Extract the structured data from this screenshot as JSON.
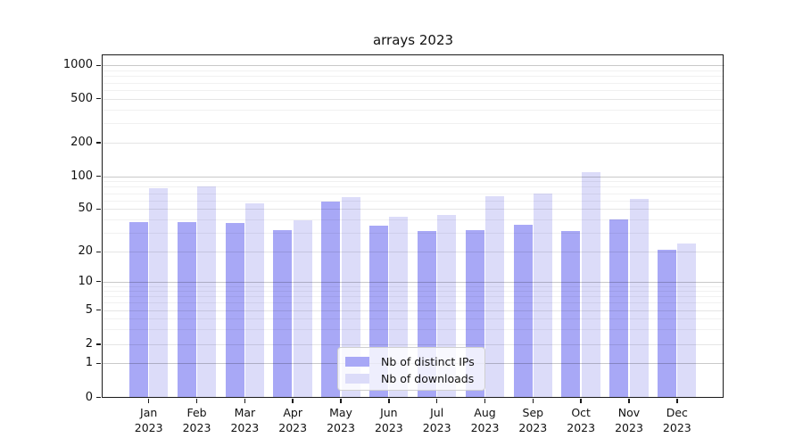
{
  "title": "arrays 2023",
  "chart_data": {
    "type": "bar",
    "title": "arrays 2023",
    "categories": [
      "Jan 2023",
      "Feb 2023",
      "Mar 2023",
      "Apr 2023",
      "May 2023",
      "Jun 2023",
      "Jul 2023",
      "Aug 2023",
      "Sep 2023",
      "Oct 2023",
      "Nov 2023",
      "Dec 2023"
    ],
    "series": [
      {
        "name": "Nb of distinct IPs",
        "color": "#a8a8f6",
        "values": [
          38,
          38,
          37,
          32,
          58,
          35,
          31,
          32,
          36,
          31,
          40,
          21
        ]
      },
      {
        "name": "Nb of downloads",
        "color": "#dcdcf9",
        "values": [
          78,
          80,
          56,
          39,
          64,
          42,
          44,
          65,
          70,
          109,
          62,
          24
        ]
      }
    ],
    "xlabel": "",
    "ylabel": "",
    "yscale": "symlog",
    "y_ticks": [
      0,
      1,
      2,
      5,
      10,
      20,
      50,
      100,
      200,
      500,
      1000
    ],
    "ylim": [
      0,
      1300
    ],
    "grid": true,
    "gridlines_above_bars": true,
    "legend_position": "lower center"
  }
}
